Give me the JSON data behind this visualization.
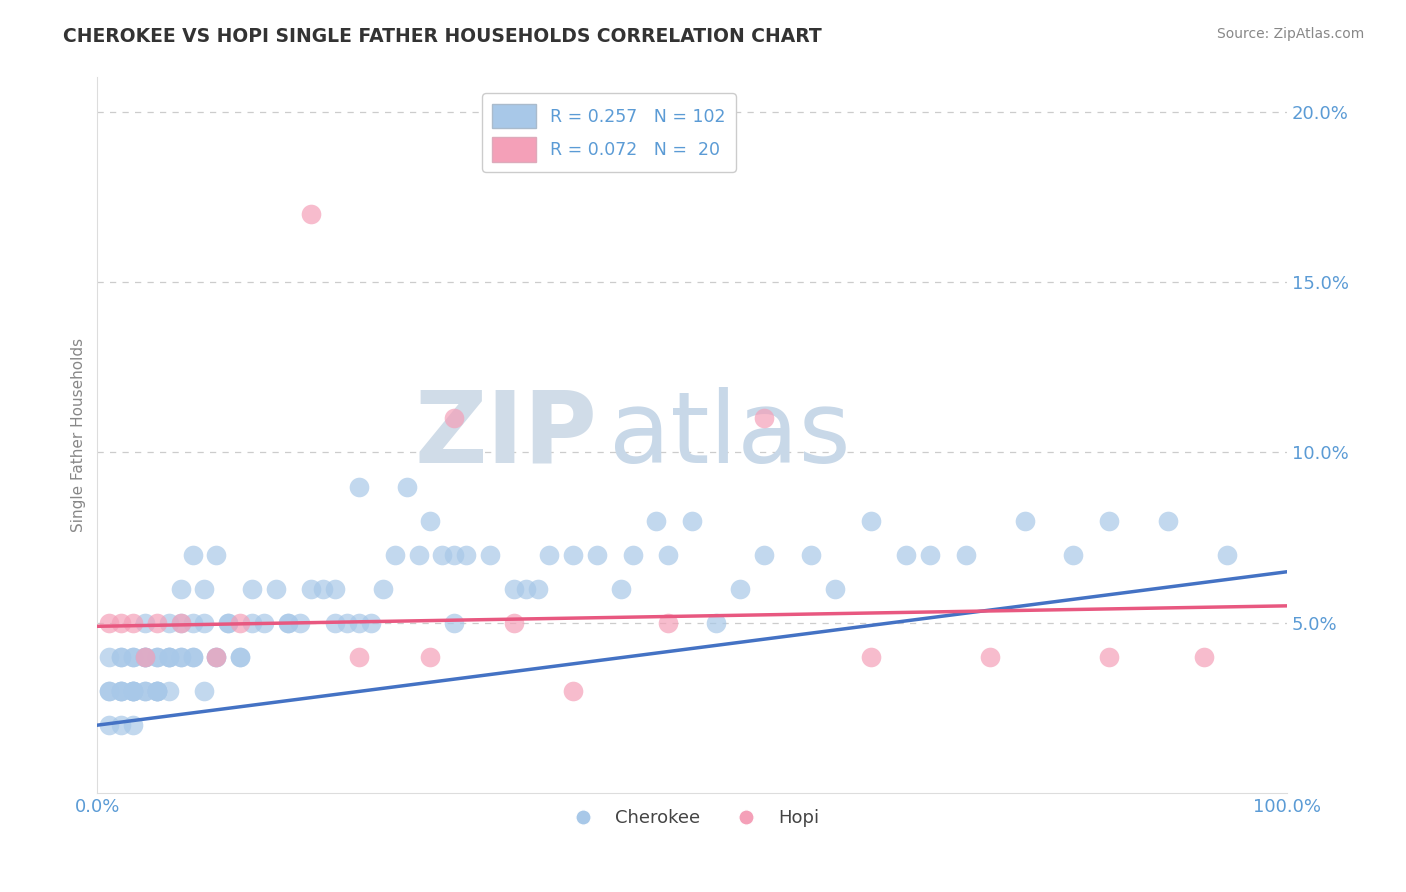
{
  "title": "CHEROKEE VS HOPI SINGLE FATHER HOUSEHOLDS CORRELATION CHART",
  "source": "Source: ZipAtlas.com",
  "ylabel": "Single Father Households",
  "xlabel": "",
  "xlim": [
    0,
    100
  ],
  "ylim": [
    0,
    21
  ],
  "yticks": [
    0,
    5,
    10,
    15,
    20
  ],
  "ytick_labels": [
    "",
    "5.0%",
    "10.0%",
    "15.0%",
    "20.0%"
  ],
  "xticks": [
    0,
    100
  ],
  "xtick_labels": [
    "0.0%",
    "100.0%"
  ],
  "legend_cherokee_r": "R = 0.257",
  "legend_cherokee_n": "N = 102",
  "legend_hopi_r": "R = 0.072",
  "legend_hopi_n": "N =  20",
  "legend_label_cherokee": "Cherokee",
  "legend_label_hopi": "Hopi",
  "cherokee_color": "#a8c8e8",
  "hopi_color": "#f4a0b8",
  "cherokee_line_color": "#4472C4",
  "hopi_line_color": "#e85880",
  "title_color": "#333333",
  "axis_color": "#5b9bd5",
  "background_color": "#ffffff",
  "grid_color": "#cccccc",
  "cherokee_x": [
    1,
    1,
    1,
    1,
    2,
    2,
    2,
    2,
    2,
    2,
    3,
    3,
    3,
    3,
    3,
    3,
    3,
    4,
    4,
    4,
    4,
    4,
    4,
    5,
    5,
    5,
    5,
    5,
    5,
    6,
    6,
    6,
    6,
    6,
    7,
    7,
    7,
    7,
    8,
    8,
    8,
    8,
    9,
    9,
    9,
    10,
    10,
    10,
    11,
    11,
    12,
    12,
    13,
    13,
    14,
    15,
    16,
    16,
    17,
    18,
    19,
    20,
    20,
    21,
    22,
    22,
    23,
    24,
    25,
    26,
    27,
    28,
    29,
    30,
    30,
    31,
    33,
    35,
    36,
    37,
    38,
    40,
    42,
    44,
    45,
    47,
    48,
    50,
    52,
    54,
    56,
    60,
    62,
    65,
    68,
    70,
    73,
    78,
    82,
    85,
    90,
    95
  ],
  "cherokee_y": [
    3,
    3,
    2,
    4,
    4,
    3,
    3,
    3,
    2,
    4,
    3,
    4,
    3,
    2,
    4,
    3,
    3,
    4,
    3,
    5,
    3,
    4,
    4,
    3,
    4,
    3,
    3,
    4,
    3,
    4,
    5,
    3,
    4,
    4,
    6,
    5,
    4,
    4,
    7,
    5,
    4,
    4,
    5,
    3,
    6,
    4,
    7,
    4,
    5,
    5,
    4,
    4,
    6,
    5,
    5,
    6,
    5,
    5,
    5,
    6,
    6,
    5,
    6,
    5,
    5,
    9,
    5,
    6,
    7,
    9,
    7,
    8,
    7,
    5,
    7,
    7,
    7,
    6,
    6,
    6,
    7,
    7,
    7,
    6,
    7,
    8,
    7,
    8,
    5,
    6,
    7,
    7,
    6,
    8,
    7,
    7,
    7,
    8,
    7,
    8,
    8,
    7
  ],
  "hopi_x": [
    1,
    2,
    3,
    4,
    5,
    7,
    10,
    12,
    18,
    22,
    28,
    30,
    35,
    40,
    48,
    56,
    65,
    75,
    85,
    93
  ],
  "hopi_y": [
    5,
    5,
    5,
    4,
    5,
    5,
    4,
    5,
    17,
    4,
    4,
    11,
    5,
    3,
    5,
    11,
    4,
    4,
    4,
    4
  ],
  "cherokee_trend": [
    2.0,
    6.5
  ],
  "hopi_trend": [
    4.9,
    5.5
  ],
  "watermark_zip_color": "#d0dce8",
  "watermark_atlas_color": "#c8d8e8"
}
